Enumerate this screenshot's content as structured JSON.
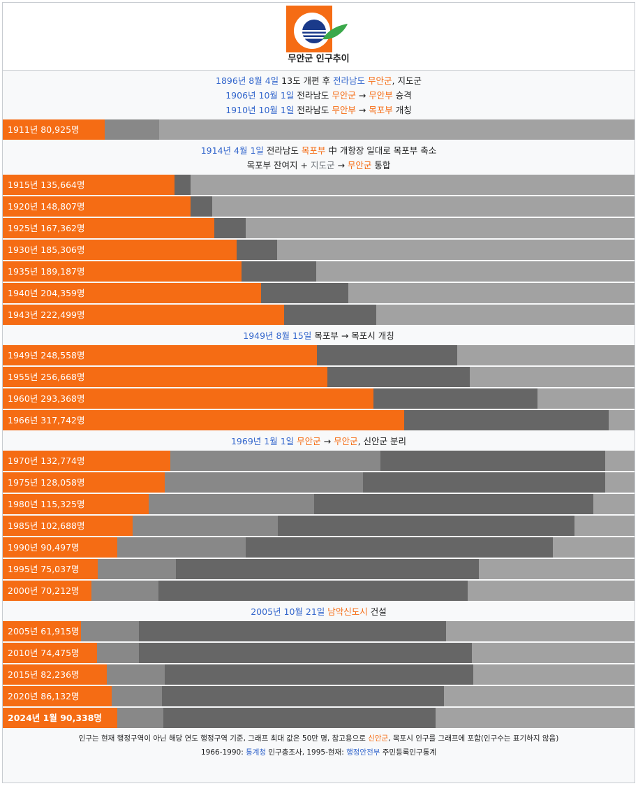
{
  "header": {
    "title": "무안군 인구추이",
    "logo_icon": "muan-county-emblem-icon",
    "colors": {
      "orange": "#f56c14",
      "navy": "#1a3a8a",
      "green": "#3aa84a"
    }
  },
  "colors": {
    "main_bar": "#f56c14",
    "muan_bu_extra": "#666666",
    "other_extra": "#888888",
    "remainder": "#a2a2a2",
    "link": "#3366cc",
    "highlight": "#f56c14"
  },
  "events": [
    {
      "lines": [
        [
          {
            "t": "1896년 8월 4일",
            "c": "blue"
          },
          {
            "t": " 13도 개편 후 ",
            "c": ""
          },
          {
            "t": "전라남도",
            "c": "blue"
          },
          {
            "t": " ",
            "c": ""
          },
          {
            "t": "무안군",
            "c": "orange"
          },
          {
            "t": ", 지도군",
            "c": ""
          }
        ],
        [
          {
            "t": "1906년 10월 1일",
            "c": "blue"
          },
          {
            "t": " 전라남도 ",
            "c": ""
          },
          {
            "t": "무안군",
            "c": "orange"
          },
          {
            "t": " → ",
            "c": ""
          },
          {
            "t": "무안부",
            "c": "orange"
          },
          {
            "t": " 승격",
            "c": ""
          }
        ],
        [
          {
            "t": "1910년 10월 1일",
            "c": "blue"
          },
          {
            "t": " 전라남도 ",
            "c": ""
          },
          {
            "t": "무안부",
            "c": "orange"
          },
          {
            "t": " → ",
            "c": ""
          },
          {
            "t": "목포부",
            "c": "orange"
          },
          {
            "t": " 개칭",
            "c": ""
          }
        ]
      ]
    },
    {
      "lines": [
        [
          {
            "t": "1914년 4월 1일",
            "c": "blue"
          },
          {
            "t": " 전라남도 ",
            "c": ""
          },
          {
            "t": "목포부",
            "c": "orange"
          },
          {
            "t": " 中 개항장 일대로 목포부 축소",
            "c": ""
          }
        ],
        [
          {
            "t": "목포부 잔여지 + ",
            "c": ""
          },
          {
            "t": "지도군",
            "c": "gray"
          },
          {
            "t": " → ",
            "c": ""
          },
          {
            "t": "무안군",
            "c": "orange"
          },
          {
            "t": " 통합",
            "c": ""
          }
        ]
      ]
    },
    {
      "lines": [
        [
          {
            "t": "1949년 8월 15일",
            "c": "blue"
          },
          {
            "t": " 목포부 → 목포시 개칭",
            "c": ""
          }
        ]
      ]
    },
    {
      "lines": [
        [
          {
            "t": "1969년 1월 1일",
            "c": "blue"
          },
          {
            "t": " ",
            "c": ""
          },
          {
            "t": "무안군",
            "c": "orange"
          },
          {
            "t": " → ",
            "c": ""
          },
          {
            "t": "무안군",
            "c": "orange"
          },
          {
            "t": ", 신안군 분리",
            "c": ""
          }
        ]
      ]
    },
    {
      "lines": [
        [
          {
            "t": "2005년 10월 21일",
            "c": "blue"
          },
          {
            "t": " ",
            "c": ""
          },
          {
            "t": "남악신도시",
            "c": "orange"
          },
          {
            "t": " 건설",
            "c": ""
          }
        ]
      ]
    }
  ],
  "chart_data": {
    "type": "bar",
    "orientation": "horizontal",
    "stacked": true,
    "max_value": 500000,
    "series_colors": [
      "#f56c14",
      "#888888",
      "#666666"
    ],
    "groups": [
      {
        "after_event": 0,
        "rows": [
          {
            "label": "1911년 80,925명",
            "value": 80925,
            "segments": [
              {
                "color": "#888888",
                "value": 43000
              }
            ]
          }
        ]
      },
      {
        "after_event": 1,
        "rows": [
          {
            "label": "1915년 135,664명",
            "value": 135664,
            "segments": [
              {
                "color": "#666666",
                "value": 13000
              }
            ]
          },
          {
            "label": "1920년 148,807명",
            "value": 148807,
            "segments": [
              {
                "color": "#666666",
                "value": 17000
              }
            ]
          },
          {
            "label": "1925년 167,362명",
            "value": 167362,
            "segments": [
              {
                "color": "#666666",
                "value": 25000
              }
            ]
          },
          {
            "label": "1930년 185,306명",
            "value": 185306,
            "segments": [
              {
                "color": "#666666",
                "value": 32000
              }
            ]
          },
          {
            "label": "1935년 189,187명",
            "value": 189187,
            "segments": [
              {
                "color": "#666666",
                "value": 59000
              }
            ]
          },
          {
            "label": "1940년 204,359명",
            "value": 204359,
            "segments": [
              {
                "color": "#666666",
                "value": 69000
              }
            ]
          },
          {
            "label": "1943년 222,499명",
            "value": 222499,
            "segments": [
              {
                "color": "#666666",
                "value": 73000
              }
            ]
          }
        ]
      },
      {
        "after_event": 2,
        "rows": [
          {
            "label": "1949년 248,558명",
            "value": 248558,
            "segments": [
              {
                "color": "#666666",
                "value": 111000
              }
            ]
          },
          {
            "label": "1955년 256,668명",
            "value": 256668,
            "segments": [
              {
                "color": "#666666",
                "value": 113000
              }
            ]
          },
          {
            "label": "1960년 293,368명",
            "value": 293368,
            "segments": [
              {
                "color": "#666666",
                "value": 130000
              }
            ]
          },
          {
            "label": "1966년 317,742명",
            "value": 317742,
            "segments": [
              {
                "color": "#666666",
                "value": 162000
              }
            ]
          }
        ]
      },
      {
        "after_event": 3,
        "rows": [
          {
            "label": "1970년 132,774명",
            "value": 132774,
            "segments": [
              {
                "color": "#888888",
                "value": 166000
              },
              {
                "color": "#666666",
                "value": 178000
              }
            ]
          },
          {
            "label": "1975년 128,058명",
            "value": 128058,
            "segments": [
              {
                "color": "#888888",
                "value": 157000
              },
              {
                "color": "#666666",
                "value": 192000
              }
            ]
          },
          {
            "label": "1980년 115,325명",
            "value": 115325,
            "segments": [
              {
                "color": "#888888",
                "value": 131000
              },
              {
                "color": "#666666",
                "value": 221000
              }
            ]
          },
          {
            "label": "1985년 102,688명",
            "value": 102688,
            "segments": [
              {
                "color": "#888888",
                "value": 115000
              },
              {
                "color": "#666666",
                "value": 235000
              }
            ]
          },
          {
            "label": "1990년 90,497명",
            "value": 90497,
            "segments": [
              {
                "color": "#888888",
                "value": 102000
              },
              {
                "color": "#666666",
                "value": 243000
              }
            ]
          },
          {
            "label": "1995년 75,037명",
            "value": 75037,
            "segments": [
              {
                "color": "#888888",
                "value": 62000
              },
              {
                "color": "#666666",
                "value": 240000
              }
            ]
          },
          {
            "label": "2000년 70,212명",
            "value": 70212,
            "segments": [
              {
                "color": "#888888",
                "value": 53000
              },
              {
                "color": "#666666",
                "value": 245000
              }
            ]
          }
        ]
      },
      {
        "after_event": 4,
        "rows": [
          {
            "label": "2005년 61,915명",
            "value": 61915,
            "segments": [
              {
                "color": "#888888",
                "value": 46000
              },
              {
                "color": "#666666",
                "value": 243000
              }
            ]
          },
          {
            "label": "2010년 74,475명",
            "value": 74475,
            "segments": [
              {
                "color": "#888888",
                "value": 33000
              },
              {
                "color": "#666666",
                "value": 264000
              }
            ]
          },
          {
            "label": "2015년 82,236명",
            "value": 82236,
            "segments": [
              {
                "color": "#888888",
                "value": 46000
              },
              {
                "color": "#666666",
                "value": 244000
              }
            ]
          },
          {
            "label": "2020년 86,132명",
            "value": 86132,
            "segments": [
              {
                "color": "#888888",
                "value": 40000
              },
              {
                "color": "#666666",
                "value": 223000
              }
            ]
          },
          {
            "label": "2024년 1월 90,338명",
            "value": 90338,
            "bold": true,
            "segments": [
              {
                "color": "#888888",
                "value": 37000
              },
              {
                "color": "#666666",
                "value": 215000
              }
            ]
          }
        ]
      }
    ]
  },
  "footer": {
    "line1": [
      {
        "t": "인구는 현재 행정구역이 아닌 해당 연도 행정구역 기준, 그래프 최대 값은 50만 명, 참고용으로 ",
        "c": ""
      },
      {
        "t": "신안군",
        "c": "orange"
      },
      {
        "t": ", 목포시 인구를 그래프에 포함(인구수는 표기하지 않음)",
        "c": ""
      }
    ],
    "line2": [
      {
        "t": "1966-1990: ",
        "c": ""
      },
      {
        "t": "통계청",
        "c": "blue"
      },
      {
        "t": " 인구총조사, 1995-현재: ",
        "c": ""
      },
      {
        "t": "행정안전부",
        "c": "blue"
      },
      {
        "t": " 주민등록인구통계",
        "c": ""
      }
    ]
  }
}
